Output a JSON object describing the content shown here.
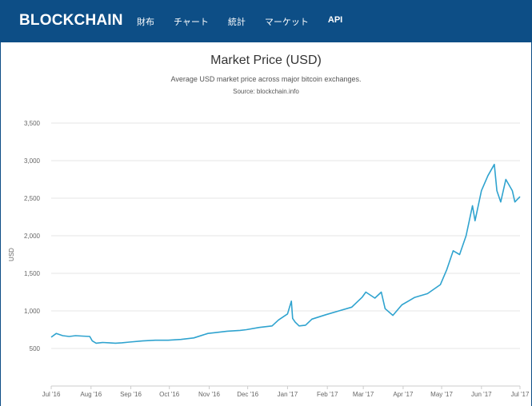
{
  "header": {
    "logo": "BLOCKCHAIN",
    "nav": [
      "財布",
      "チャート",
      "統計",
      "マーケット",
      "API"
    ],
    "bg_color": "#0d4e86"
  },
  "chart_data": {
    "type": "line",
    "title": "Market Price (USD)",
    "subtitle": "Average USD market price across major bitcoin exchanges.",
    "source": "Source: blockchain.info",
    "ylabel": "USD",
    "xlabel": "",
    "ylim": [
      0,
      3500
    ],
    "yticks": [
      500,
      1000,
      1500,
      2000,
      2500,
      3000,
      3500
    ],
    "ytick_labels": [
      "500",
      "1,000",
      "1,500",
      "2,000",
      "2,500",
      "3,000",
      "3,500"
    ],
    "xtick_labels": [
      "Jul '16",
      "Aug '16",
      "Sep '16",
      "Oct '16",
      "Nov '16",
      "Dec '16",
      "Jan '17",
      "Feb '17",
      "Mar '17",
      "Apr '17",
      "May '17",
      "Jun '17",
      "Jul '17"
    ],
    "grid": true,
    "line_color": "#2fa3cf",
    "series": [
      {
        "x": [
          "2016-07-01",
          "2016-07-05",
          "2016-07-10",
          "2016-07-15",
          "2016-07-20",
          "2016-07-25",
          "2016-07-31",
          "2016-08-02",
          "2016-08-05",
          "2016-08-10",
          "2016-08-15",
          "2016-08-20",
          "2016-08-25",
          "2016-08-31",
          "2016-09-10",
          "2016-09-20",
          "2016-09-30",
          "2016-10-10",
          "2016-10-20",
          "2016-10-31",
          "2016-11-05",
          "2016-11-15",
          "2016-11-25",
          "2016-11-30",
          "2016-12-10",
          "2016-12-20",
          "2016-12-25",
          "2017-01-01",
          "2017-01-04",
          "2017-01-05",
          "2017-01-07",
          "2017-01-10",
          "2017-01-15",
          "2017-01-20",
          "2017-01-31",
          "2017-02-10",
          "2017-02-20",
          "2017-02-28",
          "2017-03-03",
          "2017-03-10",
          "2017-03-15",
          "2017-03-18",
          "2017-03-24",
          "2017-03-31",
          "2017-04-10",
          "2017-04-20",
          "2017-04-30",
          "2017-05-05",
          "2017-05-10",
          "2017-05-15",
          "2017-05-20",
          "2017-05-25",
          "2017-05-27",
          "2017-06-01",
          "2017-06-06",
          "2017-06-11",
          "2017-06-13",
          "2017-06-16",
          "2017-06-20",
          "2017-06-25",
          "2017-06-27",
          "2017-07-01"
        ],
        "values": [
          650,
          700,
          670,
          660,
          670,
          665,
          660,
          600,
          570,
          580,
          575,
          570,
          575,
          585,
          600,
          610,
          610,
          620,
          640,
          700,
          710,
          730,
          740,
          750,
          780,
          800,
          880,
          960,
          1130,
          900,
          850,
          800,
          810,
          890,
          950,
          1000,
          1050,
          1180,
          1250,
          1170,
          1250,
          1030,
          940,
          1080,
          1180,
          1230,
          1350,
          1550,
          1800,
          1750,
          2000,
          2400,
          2200,
          2600,
          2800,
          2950,
          2600,
          2450,
          2750,
          2600,
          2450,
          2520
        ]
      }
    ]
  }
}
